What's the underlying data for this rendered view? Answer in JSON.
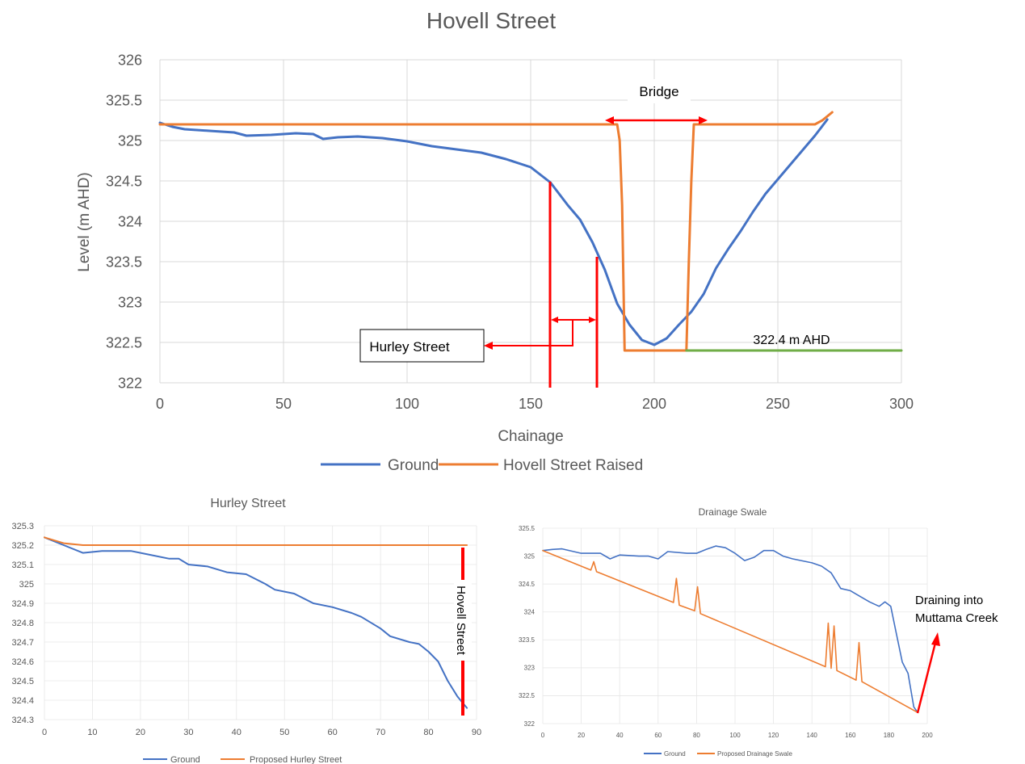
{
  "chart_data": [
    {
      "type": "line",
      "title": "Hovell Street",
      "xlabel": "Chainage",
      "ylabel": "Level (m AHD)",
      "xlim": [
        0,
        300
      ],
      "ylim": [
        322,
        326
      ],
      "x_ticks": [
        "0",
        "50",
        "100",
        "150",
        "200",
        "250",
        "300"
      ],
      "y_ticks": [
        "322",
        "322.5",
        "323",
        "323.5",
        "324",
        "324.5",
        "325",
        "325.5",
        "326"
      ],
      "grid": true,
      "legend_position": "bottom",
      "series": [
        {
          "name": "Ground",
          "color": "#4472c4",
          "points": [
            [
              0,
              325.22
            ],
            [
              5,
              325.17
            ],
            [
              10,
              325.14
            ],
            [
              20,
              325.12
            ],
            [
              30,
              325.1
            ],
            [
              35,
              325.06
            ],
            [
              45,
              325.07
            ],
            [
              55,
              325.09
            ],
            [
              62,
              325.08
            ],
            [
              66,
              325.02
            ],
            [
              72,
              325.04
            ],
            [
              80,
              325.05
            ],
            [
              90,
              325.03
            ],
            [
              100,
              324.99
            ],
            [
              110,
              324.93
            ],
            [
              120,
              324.89
            ],
            [
              130,
              324.85
            ],
            [
              140,
              324.77
            ],
            [
              150,
              324.67
            ],
            [
              158,
              324.48
            ],
            [
              165,
              324.2
            ],
            [
              170,
              324.02
            ],
            [
              175,
              323.74
            ],
            [
              180,
              323.4
            ],
            [
              185,
              322.98
            ],
            [
              190,
              322.72
            ],
            [
              195,
              322.53
            ],
            [
              200,
              322.47
            ],
            [
              205,
              322.55
            ],
            [
              210,
              322.72
            ],
            [
              215,
              322.88
            ],
            [
              220,
              323.1
            ],
            [
              225,
              323.42
            ],
            [
              230,
              323.66
            ],
            [
              235,
              323.88
            ],
            [
              240,
              324.12
            ],
            [
              245,
              324.34
            ],
            [
              250,
              324.52
            ],
            [
              255,
              324.7
            ],
            [
              260,
              324.88
            ],
            [
              265,
              325.06
            ],
            [
              270,
              325.26
            ]
          ]
        },
        {
          "name": "Hovell Street Raised",
          "color": "#ed7d31",
          "points": [
            [
              0,
              325.2
            ],
            [
              185,
              325.2
            ],
            [
              186,
              325.0
            ],
            [
              187,
              324.2
            ],
            [
              188,
              322.4
            ],
            [
              213,
              322.4
            ],
            [
              214,
              323.5
            ],
            [
              215,
              324.5
            ],
            [
              216,
              325.2
            ],
            [
              265,
              325.2
            ],
            [
              268,
              325.25
            ],
            [
              272,
              325.35
            ]
          ]
        },
        {
          "name": "",
          "color": "#70ad47",
          "points": [
            [
              213,
              322.4
            ],
            [
              300,
              322.4
            ]
          ]
        }
      ],
      "annotations": {
        "bridge": "Bridge",
        "hurley_street": "Hurley Street",
        "level_label": "322.4 m AHD"
      }
    },
    {
      "type": "line",
      "title": "Hurley Street",
      "xlim": [
        0,
        90
      ],
      "ylim": [
        324.3,
        325.3
      ],
      "x_ticks": [
        "0",
        "10",
        "20",
        "30",
        "40",
        "50",
        "60",
        "70",
        "80",
        "90"
      ],
      "y_ticks": [
        "324.3",
        "324.4",
        "324.5",
        "324.6",
        "324.7",
        "324.8",
        "324.9",
        "325",
        "325.1",
        "325.2",
        "325.3"
      ],
      "grid": true,
      "legend_position": "bottom",
      "series": [
        {
          "name": "Ground",
          "color": "#4472c4",
          "points": [
            [
              0,
              325.24
            ],
            [
              4,
              325.2
            ],
            [
              8,
              325.16
            ],
            [
              12,
              325.17
            ],
            [
              18,
              325.17
            ],
            [
              22,
              325.15
            ],
            [
              26,
              325.13
            ],
            [
              28,
              325.13
            ],
            [
              30,
              325.1
            ],
            [
              34,
              325.09
            ],
            [
              38,
              325.06
            ],
            [
              42,
              325.05
            ],
            [
              46,
              325.0
            ],
            [
              48,
              324.97
            ],
            [
              52,
              324.95
            ],
            [
              56,
              324.9
            ],
            [
              60,
              324.88
            ],
            [
              64,
              324.85
            ],
            [
              66,
              324.83
            ],
            [
              70,
              324.77
            ],
            [
              72,
              324.73
            ],
            [
              76,
              324.7
            ],
            [
              78,
              324.69
            ],
            [
              80,
              324.65
            ],
            [
              82,
              324.6
            ],
            [
              84,
              324.5
            ],
            [
              86,
              324.42
            ],
            [
              88,
              324.36
            ]
          ]
        },
        {
          "name": "Proposed Hurley Street",
          "color": "#ed7d31",
          "points": [
            [
              0,
              325.24
            ],
            [
              4,
              325.21
            ],
            [
              8,
              325.2
            ],
            [
              88,
              325.2
            ]
          ]
        }
      ],
      "annotations": {
        "hovell_street": "Hovell Street"
      }
    },
    {
      "type": "line",
      "title": "Drainage Swale",
      "xlim": [
        0,
        200
      ],
      "ylim": [
        322,
        325.5
      ],
      "x_ticks": [
        "0",
        "20",
        "40",
        "60",
        "80",
        "100",
        "120",
        "140",
        "160",
        "180",
        "200"
      ],
      "y_ticks": [
        "322",
        "322.5",
        "323",
        "323.5",
        "324",
        "324.5",
        "325",
        "325.5"
      ],
      "grid": true,
      "legend_position": "bottom",
      "series": [
        {
          "name": "Ground",
          "color": "#4472c4",
          "points": [
            [
              0,
              325.1
            ],
            [
              5,
              325.12
            ],
            [
              10,
              325.13
            ],
            [
              20,
              325.05
            ],
            [
              30,
              325.05
            ],
            [
              35,
              324.95
            ],
            [
              40,
              325.02
            ],
            [
              50,
              325.0
            ],
            [
              55,
              325.0
            ],
            [
              60,
              324.95
            ],
            [
              65,
              325.08
            ],
            [
              75,
              325.05
            ],
            [
              80,
              325.05
            ],
            [
              85,
              325.12
            ],
            [
              90,
              325.18
            ],
            [
              95,
              325.15
            ],
            [
              100,
              325.05
            ],
            [
              105,
              324.92
            ],
            [
              110,
              324.98
            ],
            [
              115,
              325.1
            ],
            [
              120,
              325.1
            ],
            [
              125,
              325.0
            ],
            [
              130,
              324.95
            ],
            [
              140,
              324.88
            ],
            [
              145,
              324.82
            ],
            [
              150,
              324.7
            ],
            [
              155,
              324.42
            ],
            [
              160,
              324.38
            ],
            [
              165,
              324.28
            ],
            [
              170,
              324.18
            ],
            [
              175,
              324.1
            ],
            [
              178,
              324.18
            ],
            [
              181,
              324.1
            ],
            [
              184,
              323.6
            ],
            [
              187,
              323.1
            ],
            [
              190,
              322.9
            ],
            [
              193,
              322.3
            ],
            [
              195,
              322.2
            ]
          ]
        },
        {
          "name": "Proposed Drainage Swale",
          "color": "#ed7d31",
          "points": [
            [
              0,
              325.1
            ],
            [
              25,
              324.75
            ],
            [
              26.5,
              324.9
            ],
            [
              28,
              324.72
            ],
            [
              68,
              324.17
            ],
            [
              69.5,
              324.6
            ],
            [
              71,
              324.12
            ],
            [
              79,
              324.02
            ],
            [
              80.5,
              324.45
            ],
            [
              82,
              323.97
            ],
            [
              147,
              323.02
            ],
            [
              148.5,
              323.8
            ],
            [
              150,
              322.99
            ],
            [
              151.5,
              323.75
            ],
            [
              153,
              322.95
            ],
            [
              163,
              322.78
            ],
            [
              164.5,
              323.45
            ],
            [
              166,
              322.75
            ],
            [
              195,
              322.2
            ]
          ]
        }
      ],
      "annotations": {
        "draining_line1": "Draining into",
        "draining_line2": "Muttama Creek"
      }
    }
  ]
}
